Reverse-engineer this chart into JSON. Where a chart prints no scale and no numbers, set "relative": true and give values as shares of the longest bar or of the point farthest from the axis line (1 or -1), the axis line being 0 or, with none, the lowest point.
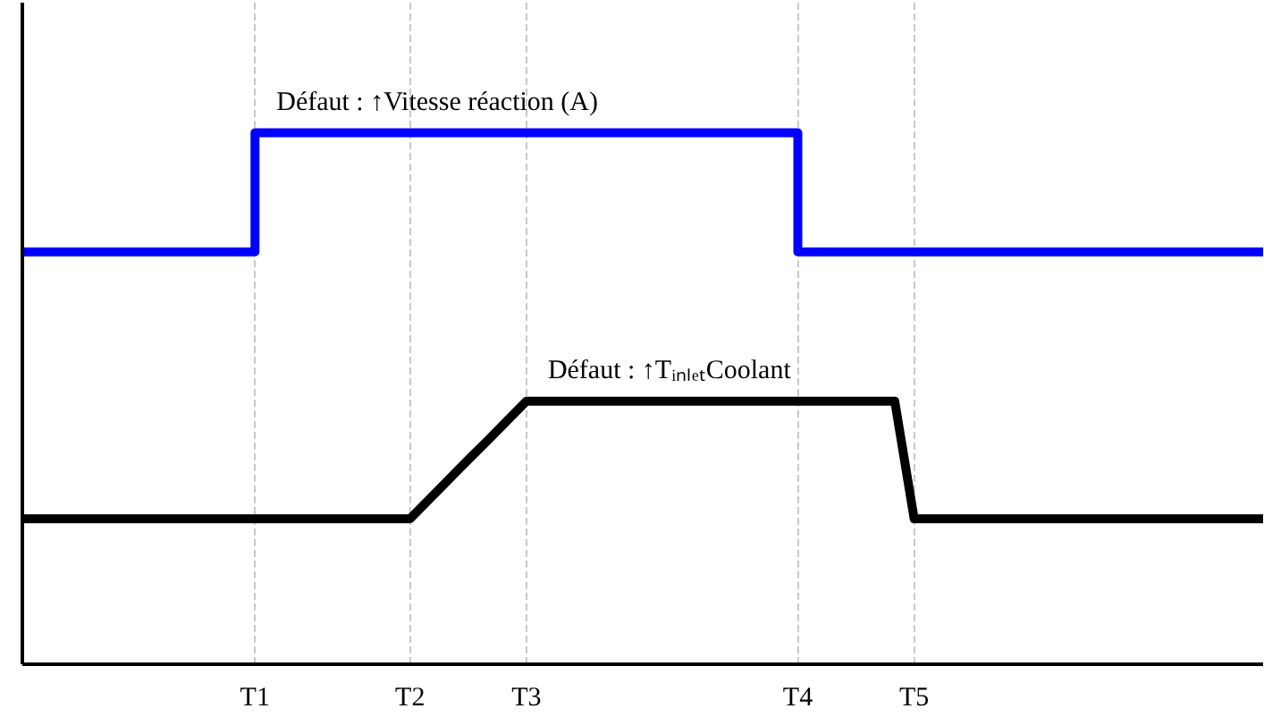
{
  "chart_data": {
    "type": "line",
    "relative": true,
    "categories": [
      null,
      null,
      null,
      null,
      null,
      null,
      null,
      null,
      null,
      null,
      null,
      null,
      "T1",
      null,
      null,
      null,
      null,
      null,
      null,
      null,
      "T2",
      null,
      null,
      null,
      null,
      null,
      "T3",
      null,
      null,
      null,
      null,
      null,
      null,
      null,
      null,
      null,
      null,
      null,
      null,
      null,
      "T4",
      null,
      null,
      null,
      null,
      null,
      "T5",
      null,
      null,
      null,
      null,
      null,
      null,
      null,
      null,
      null,
      null,
      null,
      null,
      null,
      null,
      null,
      null,
      null,
      null
    ],
    "grid": "x",
    "line_style": "solid",
    "marker": "none",
    "series": [
      {
        "type": "step",
        "color": "#0000ff",
        "values": [
          0.776,
          0.776,
          0.776,
          0.776,
          0.776,
          0.776,
          0.776,
          0.776,
          0.776,
          0.776,
          0.776,
          0.776,
          1,
          1,
          1,
          1,
          1,
          1,
          1,
          1,
          1,
          1,
          1,
          1,
          1,
          1,
          1,
          1,
          1,
          1,
          1,
          1,
          1,
          1,
          1,
          1,
          1,
          1,
          1,
          1,
          0.776,
          0.776,
          0.776,
          0.776,
          0.776,
          0.776,
          0.776,
          0.776,
          0.776,
          0.776,
          0.776,
          0.776,
          0.776,
          0.776,
          0.776,
          0.776,
          0.776,
          0.776,
          0.776,
          0.776,
          0.776,
          0.776,
          0.776,
          0.776,
          0.776
        ]
      },
      {
        "color": "#000000",
        "values": [
          0.274,
          0.274,
          0.274,
          0.274,
          0.274,
          0.274,
          0.274,
          0.274,
          0.274,
          0.274,
          0.274,
          0.274,
          0.274,
          0.274,
          0.274,
          0.274,
          0.274,
          0.274,
          0.274,
          0.274,
          0.274,
          0.311,
          0.348,
          0.385,
          0.421,
          0.458,
          0.495,
          0.495,
          0.495,
          0.495,
          0.495,
          0.495,
          0.495,
          0.495,
          0.495,
          0.495,
          0.495,
          0.495,
          0.495,
          0.495,
          0.495,
          0.495,
          0.495,
          0.495,
          0.495,
          0.495,
          0.274,
          0.274,
          0.274,
          0.274,
          0.274,
          0.274,
          0.274,
          0.274,
          0.274,
          0.274,
          0.274,
          0.274,
          0.274,
          0.274,
          0.274,
          0.274,
          0.274,
          0.274,
          0.274
        ]
      }
    ],
    "annotations": [
      {
        "text": "Défaut : ↑Vitesse réaction (A)",
        "x": "T1",
        "y": 1
      },
      {
        "text": "Défaut : ↑TᵢₙₗₑₜCoolant",
        "x": "T3",
        "y": 0.495
      }
    ]
  }
}
